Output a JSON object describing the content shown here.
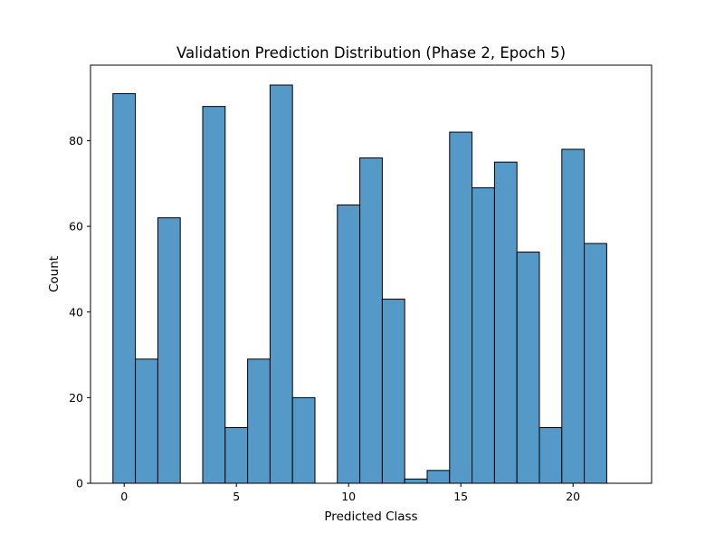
{
  "chart_data": {
    "type": "bar",
    "title": "Validation Prediction Distribution (Phase 2, Epoch 5)",
    "xlabel": "Predicted Class",
    "ylabel": "Count",
    "bar_color": "#5599c8",
    "edge_color": "#000000",
    "bins": [
      {
        "x": 0,
        "count": 91
      },
      {
        "x": 1,
        "count": 29
      },
      {
        "x": 2,
        "count": 62
      },
      {
        "x": 3,
        "count": 0
      },
      {
        "x": 4,
        "count": 88
      },
      {
        "x": 5,
        "count": 13
      },
      {
        "x": 6,
        "count": 29
      },
      {
        "x": 7,
        "count": 93
      },
      {
        "x": 8,
        "count": 20
      },
      {
        "x": 9,
        "count": 0
      },
      {
        "x": 10,
        "count": 65
      },
      {
        "x": 11,
        "count": 76
      },
      {
        "x": 12,
        "count": 43
      },
      {
        "x": 13,
        "count": 1
      },
      {
        "x": 14,
        "count": 3
      },
      {
        "x": 15,
        "count": 82
      },
      {
        "x": 16,
        "count": 69
      },
      {
        "x": 17,
        "count": 75
      },
      {
        "x": 18,
        "count": 54
      },
      {
        "x": 19,
        "count": 13
      },
      {
        "x": 20,
        "count": 78
      },
      {
        "x": 21,
        "count": 56
      },
      {
        "x": 22,
        "count": 0
      }
    ],
    "xlim": [
      -1.5,
      23.5
    ],
    "ylim": [
      0,
      97.65
    ],
    "x_ticks": [
      0,
      5,
      10,
      15,
      20
    ],
    "y_ticks": [
      0,
      20,
      40,
      60,
      80
    ],
    "grid": false
  }
}
